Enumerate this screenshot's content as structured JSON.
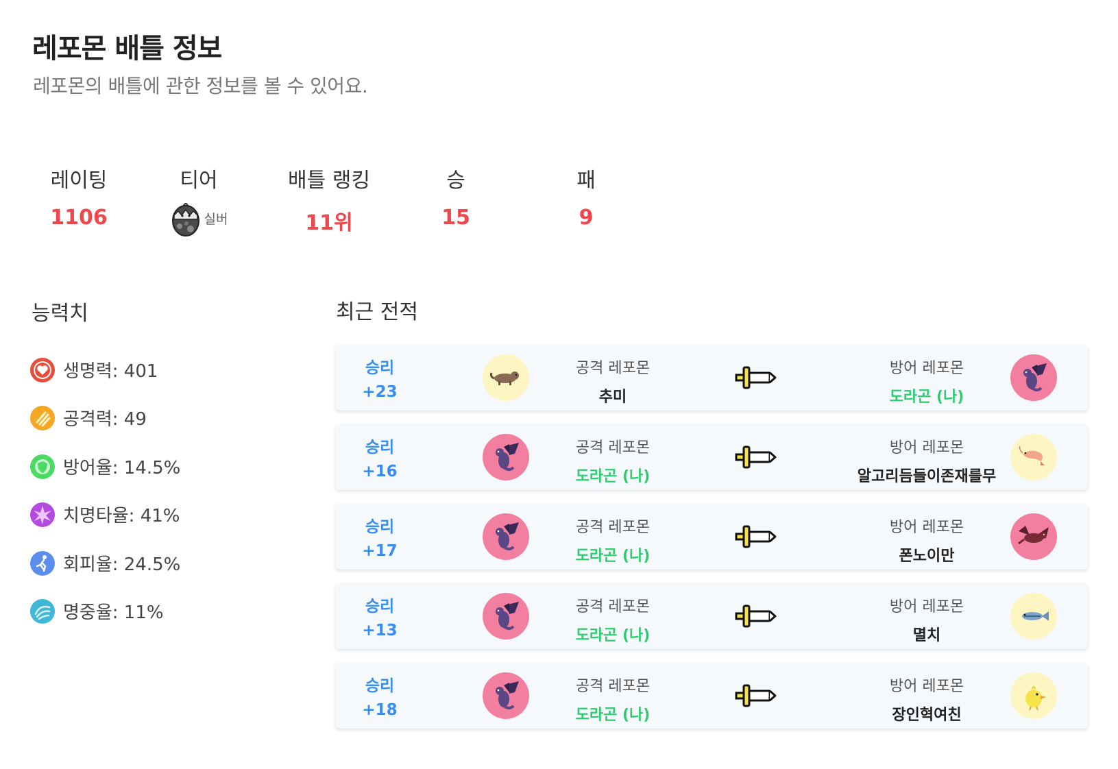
{
  "header": {
    "title": "레포몬 배틀 정보",
    "subtitle": "레포몬의 배틀에 관한 정보를 볼 수 있어요."
  },
  "summary": {
    "rating_label": "레이팅",
    "rating_value": "1106",
    "tier_label": "티어",
    "tier_value": "실버",
    "rank_label": "배틀 랭킹",
    "rank_value": "11위",
    "win_label": "승",
    "win_value": "15",
    "lose_label": "패",
    "lose_value": "9"
  },
  "abilities": {
    "title": "능력치",
    "items": [
      {
        "icon": "heart-icon",
        "text": "생명력: 401",
        "color": "#e74c3c"
      },
      {
        "icon": "claw-icon",
        "text": "공격력: 49",
        "color": "#f5a623"
      },
      {
        "icon": "shield-icon",
        "text": "방어율: 14.5%",
        "color": "#4cd964"
      },
      {
        "icon": "burst-icon",
        "text": "치명타율: 41%",
        "color": "#b44be1"
      },
      {
        "icon": "runner-icon",
        "text": "회피율: 24.5%",
        "color": "#5b8def"
      },
      {
        "icon": "swirl-icon",
        "text": "명중율: 11%",
        "color": "#3fb8d8"
      }
    ]
  },
  "records": {
    "title": "최근 전적",
    "attack_caption": "공격 레포몬",
    "defense_caption": "방어 레포몬",
    "items": [
      {
        "result": "승리",
        "delta": "+23",
        "attacker": "추미",
        "attacker_is_me": false,
        "attacker_icon": "ferret-icon",
        "attacker_bg": "#fdf6c3",
        "defender": "도라곤 (나)",
        "defender_is_me": true,
        "defender_icon": "dragon-icon",
        "defender_bg": "#f37fa0"
      },
      {
        "result": "승리",
        "delta": "+16",
        "attacker": "도라곤 (나)",
        "attacker_is_me": true,
        "attacker_icon": "dragon-icon",
        "attacker_bg": "#f37fa0",
        "defender": "알고리듬들이존재를무",
        "defender_is_me": false,
        "defender_icon": "shrimp-icon",
        "defender_bg": "#fdf6c3"
      },
      {
        "result": "승리",
        "delta": "+17",
        "attacker": "도라곤 (나)",
        "attacker_is_me": true,
        "attacker_icon": "dragon-icon",
        "attacker_bg": "#f37fa0",
        "defender": "폰노이만",
        "defender_is_me": false,
        "defender_icon": "bat-dragon-icon",
        "defender_bg": "#f37fa0"
      },
      {
        "result": "승리",
        "delta": "+13",
        "attacker": "도라곤 (나)",
        "attacker_is_me": true,
        "attacker_icon": "dragon-icon",
        "attacker_bg": "#f37fa0",
        "defender": "멸치",
        "defender_is_me": false,
        "defender_icon": "fish-icon",
        "defender_bg": "#fdf6c3"
      },
      {
        "result": "승리",
        "delta": "+18",
        "attacker": "도라곤 (나)",
        "attacker_is_me": true,
        "attacker_icon": "dragon-icon",
        "attacker_bg": "#f37fa0",
        "defender": "장인혁여친",
        "defender_is_me": false,
        "defender_icon": "chick-icon",
        "defender_bg": "#fdf6c3"
      }
    ]
  },
  "colors": {
    "accent_red": "#f0474d",
    "win_blue": "#3a8df0",
    "me_green": "#2ecc71"
  }
}
